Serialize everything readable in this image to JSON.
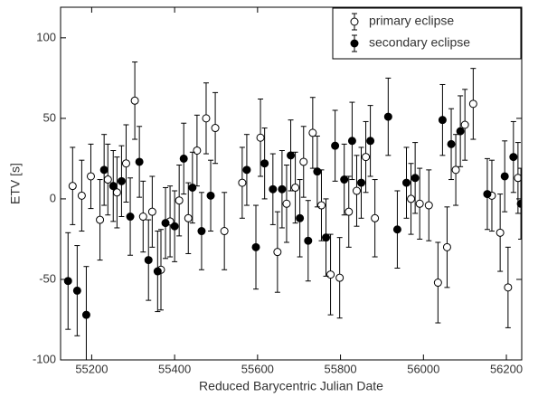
{
  "chart_data": {
    "type": "scatter",
    "xlabel": "Reduced Barycentric Julian Date",
    "ylabel": "ETV [s]",
    "xlim": [
      55125,
      56237
    ],
    "ylim": [
      -100,
      119
    ],
    "xticks": [
      55200,
      55400,
      55600,
      55800,
      56000,
      56200
    ],
    "yticks": [
      -100,
      -50,
      0,
      50,
      100
    ],
    "grid": false,
    "legend": "upper right",
    "series": [
      {
        "name": "primary eclipse",
        "color": "#000000",
        "marker": "open",
        "x": [
          55154,
          55176,
          55198,
          55220,
          55239,
          55261,
          55283,
          55304,
          55324,
          55346,
          55367,
          55389,
          55411,
          55433,
          55454,
          55476,
          55498,
          55520,
          55563,
          55607,
          55648,
          55670,
          55691,
          55711,
          55733,
          55754,
          55776,
          55798,
          55820,
          55839,
          55861,
          55883,
          55970,
          55991,
          56013,
          56035,
          56057,
          56078,
          56100,
          56120,
          56165,
          56185,
          56204,
          56228
        ],
        "values": [
          8,
          2,
          14,
          -13,
          12,
          4,
          22,
          61,
          -11,
          -8,
          -44,
          -14,
          -1,
          -12,
          30,
          50,
          44,
          -20,
          10,
          38,
          -33,
          -3,
          7,
          23,
          41,
          -4,
          -47,
          -49,
          -8,
          5,
          26,
          -12,
          0,
          -3,
          -4,
          -52,
          -30,
          18,
          46,
          59,
          2,
          -21,
          -55,
          13
        ],
        "errors": [
          24,
          22,
          20,
          25,
          22,
          22,
          24,
          24,
          22,
          22,
          25,
          22,
          22,
          22,
          22,
          22,
          22,
          24,
          22,
          24,
          25,
          24,
          22,
          22,
          22,
          22,
          25,
          25,
          22,
          22,
          22,
          24,
          22,
          22,
          22,
          25,
          25,
          22,
          22,
          22,
          22,
          24,
          25,
          22
        ]
      },
      {
        "name": "secondary eclipse",
        "color": "#000000",
        "marker": "filled",
        "x": [
          55143,
          55165,
          55187,
          55230,
          55252,
          55272,
          55293,
          55315,
          55337,
          55359,
          55378,
          55400,
          55422,
          55443,
          55465,
          55487,
          55574,
          55596,
          55617,
          55637,
          55659,
          55680,
          55702,
          55722,
          55744,
          55765,
          55787,
          55809,
          55828,
          55850,
          55872,
          55915,
          55937,
          55959,
          55980,
          56046,
          56067,
          56089,
          56154,
          56196,
          56217,
          56235
        ],
        "values": [
          -51,
          -57,
          -72,
          18,
          8,
          11,
          -11,
          23,
          -38,
          -45,
          -15,
          -17,
          25,
          7,
          -20,
          2,
          18,
          -30,
          22,
          6,
          6,
          27,
          -12,
          -26,
          17,
          -24,
          33,
          12,
          36,
          10,
          36,
          51,
          -19,
          10,
          13,
          49,
          34,
          42,
          3,
          14,
          26,
          -3
        ],
        "errors": [
          30,
          28,
          30,
          22,
          22,
          22,
          24,
          22,
          25,
          25,
          22,
          22,
          22,
          22,
          24,
          22,
          22,
          26,
          22,
          22,
          24,
          22,
          24,
          25,
          22,
          24,
          22,
          22,
          24,
          22,
          22,
          24,
          24,
          22,
          22,
          22,
          22,
          22,
          22,
          22,
          22,
          22
        ]
      }
    ]
  }
}
